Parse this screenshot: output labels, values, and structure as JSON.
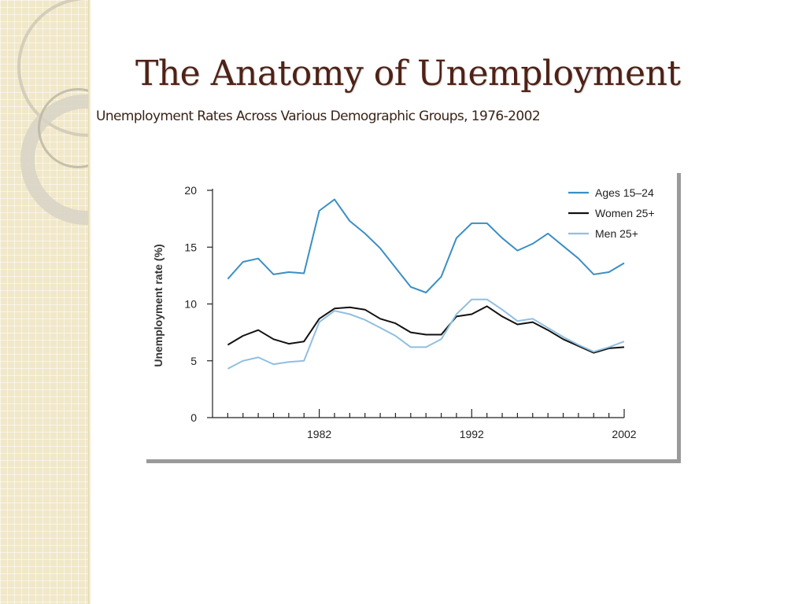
{
  "slide": {
    "title": "The Anatomy of Unemployment",
    "subtitle": "Unemployment Rates Across Various Demographic Groups, 1976-2002"
  },
  "colors": {
    "title": "#4f2216",
    "strip": "#f1e8c9"
  },
  "chart_data": {
    "type": "line",
    "x": [
      1976,
      1977,
      1978,
      1979,
      1980,
      1981,
      1982,
      1983,
      1984,
      1985,
      1986,
      1987,
      1988,
      1989,
      1990,
      1991,
      1992,
      1993,
      1994,
      1995,
      1996,
      1997,
      1998,
      1999,
      2000,
      2001,
      2002
    ],
    "series": [
      {
        "name": "Ages  15–24",
        "color": "#3a8fc4",
        "width": 2,
        "values": [
          12.2,
          13.7,
          14.0,
          12.6,
          12.8,
          12.7,
          18.2,
          19.2,
          17.3,
          16.2,
          14.9,
          13.2,
          11.5,
          11.0,
          12.4,
          15.8,
          17.1,
          17.1,
          15.8,
          14.7,
          15.3,
          16.2,
          15.1,
          14.0,
          12.6,
          12.8,
          13.6
        ]
      },
      {
        "name": "Women 25+",
        "color": "#111111",
        "width": 2,
        "values": [
          6.4,
          7.2,
          7.7,
          6.9,
          6.5,
          6.7,
          8.7,
          9.6,
          9.7,
          9.5,
          8.7,
          8.3,
          7.5,
          7.3,
          7.3,
          8.9,
          9.1,
          9.8,
          8.9,
          8.2,
          8.4,
          7.7,
          6.9,
          6.3,
          5.7,
          6.1,
          6.2
        ]
      },
      {
        "name": "Men 25+",
        "color": "#8fbfe0",
        "width": 2,
        "values": [
          4.3,
          5.0,
          5.3,
          4.7,
          4.9,
          5.0,
          8.4,
          9.4,
          9.1,
          8.6,
          7.9,
          7.2,
          6.2,
          6.2,
          6.9,
          9.1,
          10.4,
          10.4,
          9.5,
          8.5,
          8.7,
          7.9,
          7.1,
          6.4,
          5.8,
          6.2,
          6.7
        ]
      }
    ],
    "xticks": [
      1982,
      1992,
      2002
    ],
    "xlim": [
      1975,
      2002
    ],
    "yticks": [
      0,
      5,
      10,
      15,
      20
    ],
    "ylim": [
      0,
      20
    ],
    "ylabel": "Unemployment rate (%)",
    "xlabel": "",
    "legend_position": "top-right",
    "grid": false
  }
}
